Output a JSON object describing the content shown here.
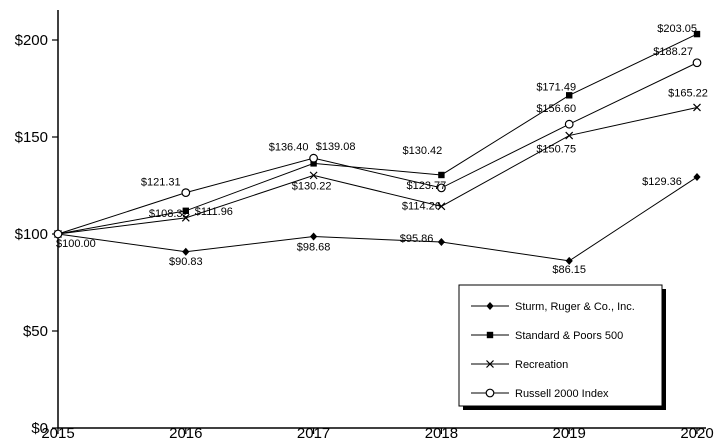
{
  "chart_data": {
    "type": "line",
    "title": "",
    "x_tick_labels": [
      "2015",
      "2016",
      "2017",
      "2018",
      "2019",
      "2020"
    ],
    "y_ticks": [
      "$0",
      "$50",
      "$100",
      "$150",
      "$200"
    ],
    "y_tick_values": [
      0,
      50,
      100,
      150,
      200
    ],
    "ylim": [
      0,
      215
    ],
    "grid": false,
    "legend_position": "bottom-right",
    "value_prefix": "$",
    "shared_start_label": "$100.00",
    "series": [
      {
        "name": "Sturm, Ruger & Co., Inc.",
        "marker": "diamond",
        "values": [
          100.0,
          90.83,
          98.68,
          95.86,
          86.15,
          129.36
        ]
      },
      {
        "name": "Standard & Poors 500",
        "marker": "square",
        "values": [
          100.0,
          111.96,
          136.4,
          130.42,
          171.49,
          203.05
        ]
      },
      {
        "name": "Recreation",
        "marker": "x",
        "values": [
          100.0,
          108.32,
          130.22,
          114.26,
          150.75,
          165.22
        ]
      },
      {
        "name": "Russell 2000 Index",
        "marker": "circle",
        "values": [
          100.0,
          121.31,
          139.08,
          123.77,
          156.6,
          188.27
        ]
      }
    ],
    "colors": {
      "line": "#000000",
      "background": "#ffffff",
      "marker_fill": "#000000",
      "open_marker_fill": "#ffffff"
    }
  }
}
